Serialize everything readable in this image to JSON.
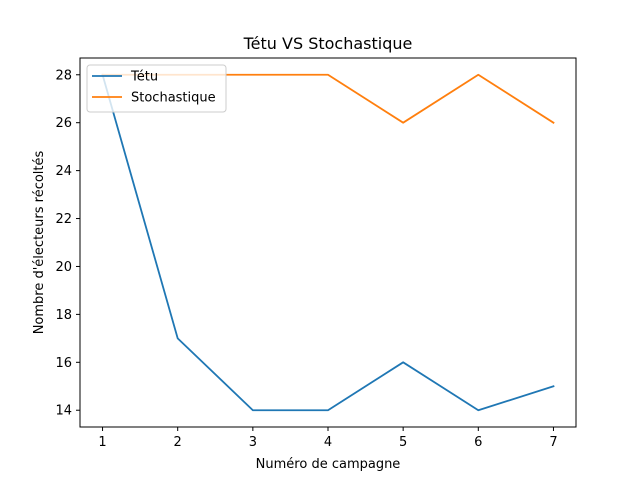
{
  "chart_data": {
    "type": "line",
    "title": "Tétu VS Stochastique",
    "xlabel": "Numéro de campagne",
    "ylabel": "Nombre d'électeurs récoltés",
    "x": [
      1,
      2,
      3,
      4,
      5,
      6,
      7
    ],
    "xticks": [
      "1",
      "2",
      "3",
      "4",
      "5",
      "6",
      "7"
    ],
    "yticks": [
      "14",
      "16",
      "18",
      "20",
      "22",
      "24",
      "26",
      "28"
    ],
    "xlim": [
      0.7,
      7.3
    ],
    "ylim": [
      13.3,
      28.7
    ],
    "grid": false,
    "legend_position": "top-left",
    "series": [
      {
        "name": "Tétu",
        "color": "#1f77b4",
        "values": [
          28,
          17,
          14,
          14,
          16,
          14,
          15
        ]
      },
      {
        "name": "Stochastique",
        "color": "#ff7f0e",
        "values": [
          28,
          28,
          28,
          28,
          26,
          28,
          26
        ]
      }
    ]
  }
}
